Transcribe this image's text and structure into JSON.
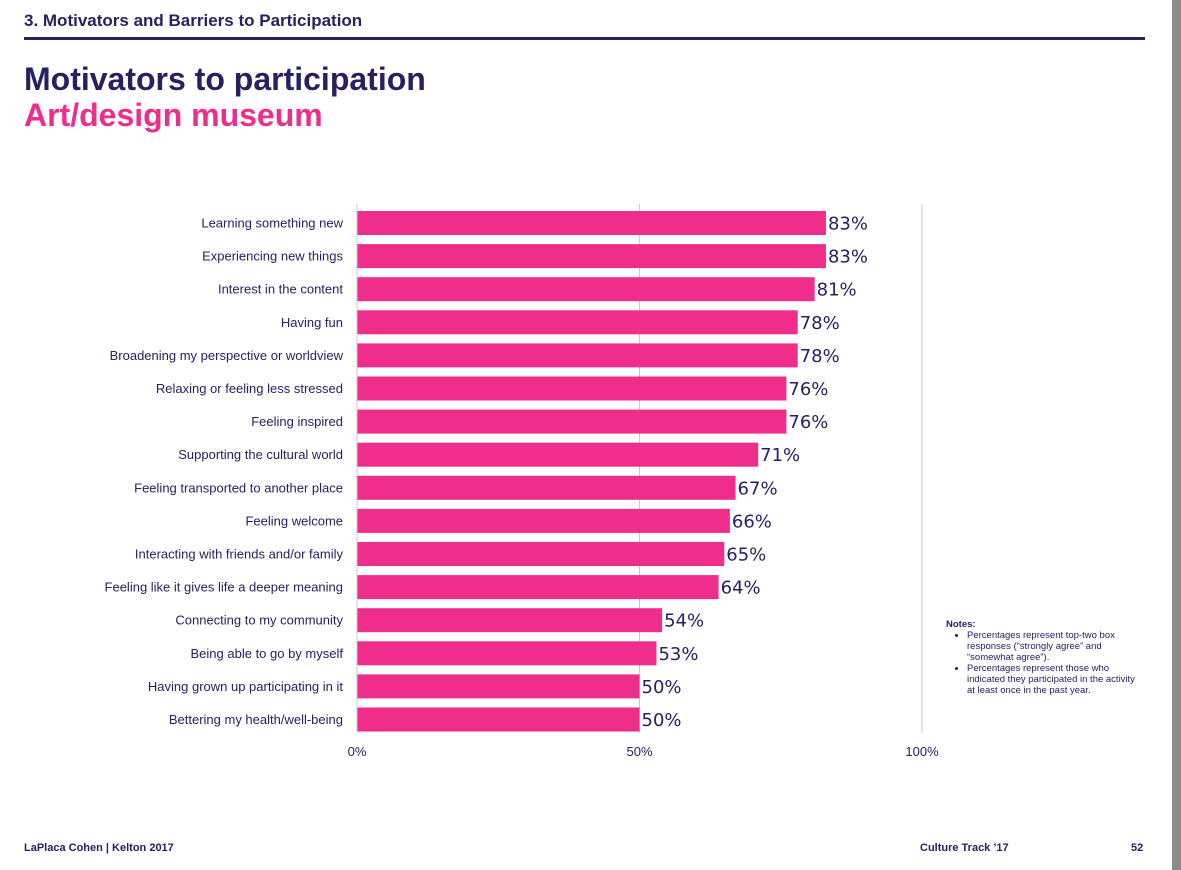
{
  "header": {
    "section_title": "3. Motivators and Barriers to Participation"
  },
  "chart_data": {
    "type": "bar",
    "orientation": "horizontal",
    "title": "Motivators to participation",
    "subtitle": "Art/design museum",
    "categories": [
      "Learning something new",
      "Experiencing new things",
      "Interest in the content",
      "Having fun",
      "Broadening my perspective or worldview",
      "Relaxing or feeling less stressed",
      "Feeling inspired",
      "Supporting the cultural world",
      "Feeling transported to another place",
      "Feeling welcome",
      "Interacting with friends and/or family",
      "Feeling like it gives life a deeper meaning",
      "Connecting to my community",
      "Being able to go by myself",
      "Having grown up participating in it",
      "Bettering my health/well-being"
    ],
    "values": [
      83,
      83,
      81,
      78,
      78,
      76,
      76,
      71,
      67,
      66,
      65,
      64,
      54,
      53,
      50,
      50
    ],
    "value_labels": [
      "83%",
      "83%",
      "81%",
      "78%",
      "78%",
      "76%",
      "76%",
      "71%",
      "67%",
      "66%",
      "65%",
      "64%",
      "54%",
      "53%",
      "50%",
      "50%"
    ],
    "xlim": [
      0,
      100
    ],
    "x_ticks": [
      0,
      50,
      100
    ],
    "x_tick_labels": [
      "0%",
      "50%",
      "100%"
    ],
    "gridlines": "vertical at 50% and 100%",
    "bar_color": "#ef2e8c",
    "text_color": "#262161"
  },
  "notes": {
    "title": "Notes:",
    "items": [
      "Percentages represent top-two box responses (“strongly agree” and “somewhat agree”).",
      "Percentages represent those who indicated they participated in the activity at least once in the past year."
    ]
  },
  "footer": {
    "left": "LaPlaca Cohen | Kelton 2017",
    "center": "Culture Track ’17",
    "page_number": "52"
  }
}
